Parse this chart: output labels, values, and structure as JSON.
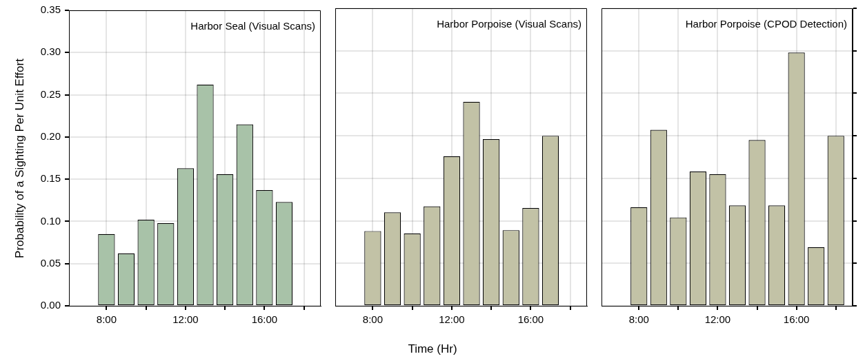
{
  "chart_data": [
    {
      "type": "bar",
      "title": "Harbor Seal (Visual Scans)",
      "ylabel": "Probability of a Sighting Per Unit Effort",
      "x": [
        7,
        8,
        9,
        10,
        11,
        12,
        13,
        14,
        15,
        16,
        17,
        18
      ],
      "color": "#a8c2a8",
      "values": [
        0,
        0.085,
        0.062,
        0.102,
        0.098,
        0.163,
        0.262,
        0.156,
        0.215,
        0.137,
        0.123,
        0
      ],
      "xlim": [
        6.1,
        18.85
      ],
      "xticks": [
        {
          "value": 8,
          "label": "8:00"
        },
        {
          "value": 10,
          "label": null
        },
        {
          "value": 12,
          "label": "12:00"
        },
        {
          "value": 14,
          "label": null
        },
        {
          "value": 16,
          "label": "16:00"
        },
        {
          "value": 18,
          "label": null
        }
      ],
      "ylim": [
        0,
        0.35
      ],
      "yticks": [
        {
          "value": 0,
          "label": "0.00"
        },
        0.05,
        {
          "value": 0.1,
          "label": "0.10"
        },
        0.15,
        {
          "value": 0.2,
          "label": "0.20"
        },
        0.25,
        {
          "value": 0.3,
          "label": "0.30"
        },
        0.35
      ],
      "grid": true
    },
    {
      "type": "bar",
      "title": "Harbor Porpoise (Visual Scans)",
      "xlabel": "Time (Hr)",
      "x": [
        7,
        8,
        9,
        10,
        11,
        12,
        13,
        14,
        15,
        16,
        17,
        18
      ],
      "color": "#c2c2a6",
      "values": [
        0,
        0.088,
        0.11,
        0.085,
        0.117,
        0.176,
        0.24,
        0.196,
        0.089,
        0.115,
        0.2,
        0
      ],
      "xlim": [
        6.1,
        18.85
      ],
      "xticks": [
        {
          "value": 8,
          "label": "8:00"
        },
        {
          "value": 10,
          "label": null
        },
        {
          "value": 12,
          "label": "12:00"
        },
        {
          "value": 14,
          "label": null
        },
        {
          "value": 16,
          "label": "16:00"
        },
        {
          "value": 18,
          "label": null
        }
      ],
      "ylim": [
        0,
        0.35
      ],
      "yticks": [
        0,
        0.05,
        0.1,
        0.15,
        0.2,
        0.25,
        0.3,
        0.35
      ],
      "grid": true,
      "tick_labels": "x"
    },
    {
      "type": "bar",
      "title": "Harbor Porpoise (CPOD Detection)",
      "x": [
        7,
        8,
        9,
        10,
        11,
        12,
        13,
        14,
        15,
        16,
        17,
        18
      ],
      "color": "#c2c2a6",
      "values": [
        0,
        0.116,
        0.207,
        0.104,
        0.158,
        0.155,
        0.118,
        0.195,
        0.118,
        0.298,
        0.069,
        0.2
      ],
      "xlim": [
        6.1,
        18.85
      ],
      "xticks": [
        {
          "value": 8,
          "label": "8:00"
        },
        {
          "value": 10,
          "label": null
        },
        {
          "value": 12,
          "label": "12:00"
        },
        {
          "value": 14,
          "label": null
        },
        {
          "value": 16,
          "label": "16:00"
        },
        {
          "value": 18,
          "label": null
        }
      ],
      "ylim": [
        0,
        0.35
      ],
      "yticks": [
        {
          "value": 0,
          "label": null
        },
        {
          "value": 0.05,
          "label": null
        },
        {
          "value": 0.1,
          "label": null
        },
        {
          "value": 0.15,
          "label": null
        },
        {
          "value": 0.2,
          "label": null
        },
        {
          "value": 0.25,
          "label": null
        },
        {
          "value": 0.3,
          "label": null
        },
        {
          "value": 0.35,
          "label": null
        }
      ],
      "grid": true,
      "tick_labels": "x"
    }
  ]
}
